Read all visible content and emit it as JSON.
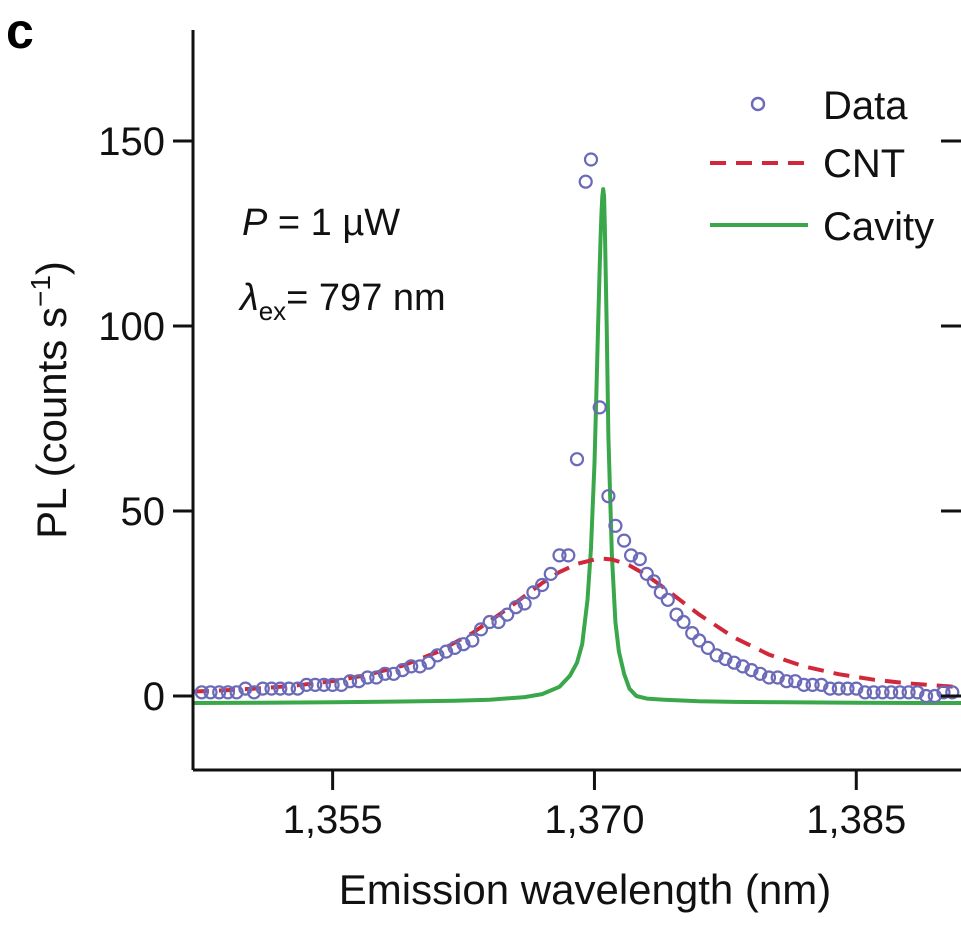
{
  "panel_label": "c",
  "annotations": {
    "power_symbol": "P",
    "power_rest": " = 1 µW",
    "lambda_symbol": "λ",
    "lambda_sub": "ex",
    "lambda_rest": "= 797 nm"
  },
  "chart_data": {
    "type": "line",
    "xlabel": "Emission wavelength (nm)",
    "ylabel_main": "PL (counts s",
    "ylabel_sup": "−1",
    "ylabel_close": ")",
    "xlim": [
      1347,
      1391
    ],
    "ylim": [
      -20,
      180
    ],
    "xticks": [
      1355,
      1370,
      1385
    ],
    "xtick_labels": [
      "1,355",
      "1,370",
      "1,385"
    ],
    "yticks": [
      0,
      50,
      100,
      150
    ],
    "ytick_labels": [
      "0",
      "50",
      "100",
      "150"
    ],
    "legend_position": "top-right",
    "colors": {
      "data": "#6a6ab8",
      "cnt": "#d0283a",
      "cavity": "#3aa84a"
    },
    "series": [
      {
        "name": "Data",
        "style": "markers",
        "x": [
          1347.5,
          1348.0,
          1348.5,
          1349.0,
          1349.5,
          1350.0,
          1350.5,
          1351.0,
          1351.5,
          1352.0,
          1352.5,
          1353.0,
          1353.5,
          1354.0,
          1354.5,
          1355.0,
          1355.5,
          1356.0,
          1356.5,
          1357.0,
          1357.5,
          1358.0,
          1358.5,
          1359.0,
          1359.5,
          1360.0,
          1360.5,
          1361.0,
          1361.5,
          1362.0,
          1362.5,
          1363.0,
          1363.5,
          1364.0,
          1364.5,
          1365.0,
          1365.5,
          1366.0,
          1366.5,
          1367.0,
          1367.5,
          1368.0,
          1368.5,
          1369.0,
          1369.5,
          1369.8,
          1370.3,
          1370.8,
          1371.2,
          1371.7,
          1372.1,
          1372.6,
          1373.0,
          1373.4,
          1373.8,
          1374.2,
          1374.7,
          1375.1,
          1375.6,
          1376.0,
          1376.5,
          1377.0,
          1377.5,
          1378.0,
          1378.5,
          1379.0,
          1379.5,
          1380.0,
          1380.5,
          1381.0,
          1381.5,
          1382.0,
          1382.5,
          1383.0,
          1383.5,
          1384.0,
          1384.5,
          1385.0,
          1385.5,
          1386.0,
          1386.5,
          1387.0,
          1387.5,
          1388.0,
          1388.5,
          1389.0,
          1389.5,
          1390.0,
          1390.5
        ],
        "y": [
          1,
          1,
          1,
          1,
          1,
          2,
          1,
          2,
          2,
          2,
          2,
          2,
          3,
          3,
          3,
          3,
          3,
          4,
          4,
          5,
          5,
          6,
          6,
          7,
          8,
          8,
          9,
          11,
          12,
          13,
          14,
          15,
          18,
          20,
          20,
          22,
          24,
          25,
          28,
          30,
          33,
          38,
          38,
          64,
          139,
          145,
          78,
          54,
          46,
          42,
          38,
          37,
          33,
          31,
          28,
          26,
          22,
          20,
          17,
          15,
          13,
          11,
          10,
          9,
          8,
          7,
          6,
          5,
          5,
          4,
          4,
          3,
          3,
          3,
          2,
          2,
          2,
          2,
          1,
          1,
          1,
          1,
          1,
          1,
          1,
          0,
          0,
          1,
          1
        ],
        "x_labeled_last": "1,385"
      },
      {
        "name": "CNT",
        "style": "dashed",
        "x": [
          1347,
          1349,
          1351,
          1353,
          1355,
          1357,
          1359,
          1361,
          1363,
          1365,
          1366,
          1367,
          1368,
          1369,
          1370,
          1370.5,
          1371,
          1371.5,
          1372,
          1373,
          1374,
          1375,
          1376,
          1378,
          1380,
          1382,
          1384,
          1386,
          1388,
          1390,
          1391
        ],
        "y": [
          1.2,
          1.6,
          2.1,
          2.9,
          4.0,
          5.7,
          8.2,
          11.9,
          17.0,
          23.5,
          27.0,
          30.5,
          33.5,
          35.7,
          36.9,
          37.1,
          36.9,
          36.2,
          35.3,
          32.6,
          29.2,
          25.6,
          22.0,
          15.8,
          11.2,
          8.0,
          5.9,
          4.4,
          3.4,
          2.7,
          2.4
        ]
      },
      {
        "name": "Cavity",
        "style": "solid",
        "x": [
          1347,
          1351,
          1355,
          1359,
          1362,
          1364,
          1366,
          1367,
          1368,
          1368.6,
          1369,
          1369.3,
          1369.6,
          1369.8,
          1370.0,
          1370.1,
          1370.2,
          1370.3,
          1370.35,
          1370.4,
          1370.45,
          1370.5,
          1370.55,
          1370.6,
          1370.7,
          1370.8,
          1371.0,
          1371.2,
          1371.4,
          1371.7,
          1372.0,
          1372.4,
          1373,
          1374,
          1376,
          1378,
          1381,
          1385,
          1389,
          1391
        ],
        "y": [
          -1.9,
          -1.8,
          -1.7,
          -1.5,
          -1.3,
          -1.0,
          -0.3,
          0.5,
          2.5,
          5.5,
          9,
          14,
          26,
          40,
          63,
          80,
          98,
          116,
          124,
          130,
          135,
          137,
          135,
          126,
          100,
          70,
          38,
          20,
          12,
          6,
          2,
          0,
          -0.7,
          -1.0,
          -1.4,
          -1.6,
          -1.7,
          -1.8,
          -1.9,
          -1.9
        ]
      }
    ]
  }
}
